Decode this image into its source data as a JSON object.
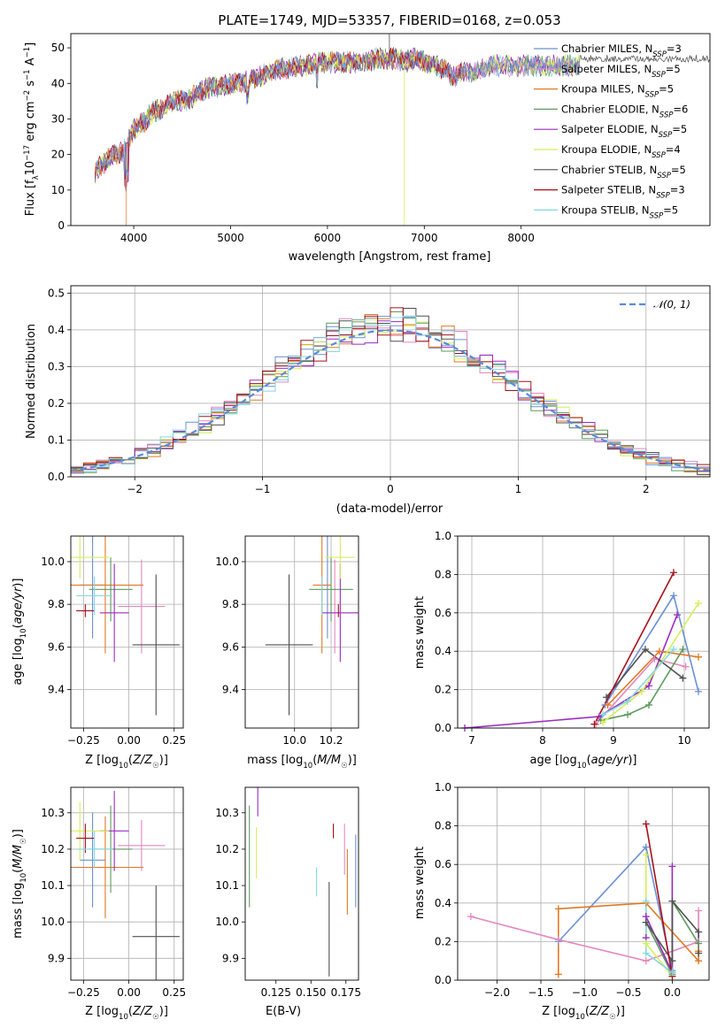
{
  "colors": {
    "chabrier_miles": "#6a8fd8",
    "salpeter_miles": "#e487c0",
    "kroupa_miles": "#e07a22",
    "chabrier_elodie": "#5e9a5e",
    "salpeter_elodie": "#9b2bbf",
    "kroupa_elodie": "#d6ee5a",
    "chabrier_stelib": "#505050",
    "salpeter_stelib": "#a8101a",
    "kroupa_stelib": "#84d8e0",
    "normal_curve": "#5b8ad8",
    "grid": "#b0b0b0"
  },
  "chart_data": [
    {
      "type": "line",
      "title": "PLATE=1749, MJD=53357, FIBERID=0168, z=0.053",
      "xlabel": "wavelength [Angstrom, rest frame]",
      "ylabel": "Flux [fλ10⁻¹⁷ erg cm⁻² s⁻¹ A⁻¹]",
      "xlim": [
        3350,
        9950
      ],
      "ylim": [
        0,
        54
      ],
      "xticks": [
        "4000",
        "5000",
        "6000",
        "7000",
        "8000"
      ],
      "yticks": [
        "0",
        "10",
        "20",
        "30",
        "40",
        "50"
      ],
      "grid": false,
      "legend_position": "right",
      "series": [
        {
          "name": "Chabrier MILES, N_SSP=3"
        },
        {
          "name": "Salpeter MILES, N_SSP=5"
        },
        {
          "name": "Kroupa MILES, N_SSP=5"
        },
        {
          "name": "Chabrier ELODIE, N_SSP=6"
        },
        {
          "name": "Salpeter ELODIE, N_SSP=5"
        },
        {
          "name": "Kroupa ELODIE, N_SSP=4"
        },
        {
          "name": "Chabrier STELIB, N_SSP=5"
        },
        {
          "name": "Salpeter STELIB, N_SSP=3"
        },
        {
          "name": "Kroupa STELIB, N_SSP=5"
        }
      ],
      "spectrum_continuum": {
        "x": [
          3600,
          3700,
          3800,
          3900,
          4000,
          4100,
          4200,
          4300,
          4400,
          4500,
          4600,
          4700,
          4800,
          4900,
          5000,
          5100,
          5200,
          5300,
          5400,
          5500,
          5600,
          5700,
          5800,
          5900,
          6000,
          6100,
          6200,
          6300,
          6400,
          6500,
          6600,
          6700,
          6800,
          6900,
          7000,
          7100,
          7200,
          7300,
          7400,
          7500,
          7600,
          7700,
          7800,
          7900,
          8000,
          8100,
          8200,
          8300,
          8400,
          8500,
          8600
        ],
        "y": [
          15,
          18,
          20,
          21,
          27,
          29,
          32,
          33,
          35,
          35,
          36,
          38,
          39,
          39,
          40,
          40,
          41,
          42,
          43,
          44,
          44,
          45,
          45,
          46,
          46,
          46,
          46,
          46,
          46,
          47,
          47,
          47,
          46,
          47,
          46,
          45,
          44,
          42,
          43,
          43,
          44,
          45,
          45,
          45,
          45,
          45,
          45,
          45,
          45,
          45,
          45
        ]
      }
    },
    {
      "type": "bar",
      "xlabel": "(data-model)/error",
      "ylabel": "Normed distribution",
      "xlim": [
        -2.5,
        2.5
      ],
      "ylim": [
        0,
        0.52
      ],
      "xticks": [
        "−2",
        "−1",
        "0",
        "1",
        "2"
      ],
      "yticks": [
        "0.0",
        "0.1",
        "0.2",
        "0.3",
        "0.4",
        "0.5"
      ],
      "grid": true,
      "legend_position": "top-right",
      "reference_curve": {
        "name": "𝒩(0, 1)",
        "mu": 0,
        "sigma": 1
      },
      "bin_width": 0.1,
      "histogram_x_start": -2.5
    },
    {
      "type": "scatter",
      "xlabel": "Z [log10(Z/Z☉)]",
      "ylabel": "age [log10(age/yr)]",
      "xlim": [
        -0.32,
        0.3
      ],
      "ylim": [
        9.22,
        10.12
      ],
      "xticks": [
        "−0.25",
        "0.00",
        "0.25"
      ],
      "yticks": [
        "9.4",
        "9.6",
        "9.8",
        "10.0"
      ],
      "grid": true,
      "points": [
        {
          "x": -0.2,
          "xerr": 0.07,
          "y": 9.89,
          "yerr": 0.25
        },
        {
          "x": 0.07,
          "xerr": 0.13,
          "y": 9.79,
          "yerr": 0.22
        },
        {
          "x": -0.13,
          "xerr": 0.21,
          "y": 9.89,
          "yerr": 0.32
        },
        {
          "x": -0.1,
          "xerr": 0.12,
          "y": 9.87,
          "yerr": 0.15
        },
        {
          "x": -0.08,
          "xerr": 0.08,
          "y": 9.76,
          "yerr": 0.23
        },
        {
          "x": -0.27,
          "xerr": 0.16,
          "y": 10.02,
          "yerr": 0.1
        },
        {
          "x": 0.15,
          "xerr": 0.13,
          "y": 9.61,
          "yerr": 0.33
        },
        {
          "x": -0.24,
          "xerr": 0.05,
          "y": 9.77,
          "yerr": 0.03
        },
        {
          "x": -0.19,
          "xerr": 0.1,
          "y": 9.84,
          "yerr": 0.09
        }
      ]
    },
    {
      "type": "scatter",
      "xlabel": "mass [log10(M/M☉)]",
      "xlim": [
        9.73,
        10.35
      ],
      "ylim": [
        9.22,
        10.12
      ],
      "xticks": [
        "10.0",
        "10.2"
      ],
      "yticks": [
        "9.4",
        "9.6",
        "9.8",
        "10.0"
      ],
      "grid": true,
      "points": [
        {
          "x": 10.18,
          "xerr": 0.0,
          "y": 9.89,
          "yerr": 0.25
        },
        {
          "x": 10.22,
          "xerr": 0.0,
          "y": 9.79,
          "yerr": 0.22
        },
        {
          "x": 10.15,
          "xerr": 0.05,
          "y": 9.89,
          "yerr": 0.32
        },
        {
          "x": 10.2,
          "xerr": 0.12,
          "y": 9.87,
          "yerr": 0.15
        },
        {
          "x": 10.25,
          "xerr": 0.1,
          "y": 9.76,
          "yerr": 0.23
        },
        {
          "x": 10.25,
          "xerr": 0.08,
          "y": 10.02,
          "yerr": 0.1
        },
        {
          "x": 9.97,
          "xerr": 0.13,
          "y": 9.61,
          "yerr": 0.33
        },
        {
          "x": 10.24,
          "xerr": 0.0,
          "y": 9.77,
          "yerr": 0.03
        },
        {
          "x": 10.15,
          "xerr": 0.0,
          "y": 9.84,
          "yerr": 0.09
        }
      ]
    },
    {
      "type": "line",
      "xlabel": "age [log10(age/yr)]",
      "ylabel": "mass weight",
      "xlim": [
        6.8,
        10.35
      ],
      "ylim": [
        0,
        1
      ],
      "xticks": [
        "7",
        "8",
        "9",
        "10"
      ],
      "yticks": [
        "0.0",
        "0.2",
        "0.4",
        "0.6",
        "0.8",
        "1.0"
      ],
      "grid": true,
      "series_points": [
        {
          "x": [
            8.88,
            9.85,
            10.2
          ],
          "y": [
            0.12,
            0.69,
            0.19
          ]
        },
        {
          "x": [
            8.75,
            9.58,
            10.02
          ],
          "y": [
            0.02,
            0.36,
            0.32
          ]
        },
        {
          "x": [
            8.92,
            9.65,
            10.2
          ],
          "y": [
            0.12,
            0.4,
            0.37
          ]
        },
        {
          "x": [
            8.82,
            9.2,
            9.5,
            9.98
          ],
          "y": [
            0.04,
            0.07,
            0.12,
            0.41
          ]
        },
        {
          "x": [
            6.9,
            8.8,
            9.5,
            9.9
          ],
          "y": [
            0.0,
            0.06,
            0.22,
            0.59
          ]
        },
        {
          "x": [
            8.85,
            9.4,
            10.2
          ],
          "y": [
            0.03,
            0.19,
            0.65
          ]
        },
        {
          "x": [
            8.9,
            9.45,
            9.98
          ],
          "y": [
            0.16,
            0.41,
            0.26
          ]
        },
        {
          "x": [
            8.73,
            9.85
          ],
          "y": [
            0.02,
            0.81
          ]
        },
        {
          "x": [
            8.85,
            9.2,
            9.85
          ],
          "y": [
            0.07,
            0.14,
            0.41
          ]
        }
      ]
    },
    {
      "type": "scatter",
      "xlabel": "Z [log10(Z/Z☉)]",
      "ylabel": "mass [log10(M/M☉)]",
      "xlim": [
        -0.32,
        0.3
      ],
      "ylim": [
        9.84,
        10.37
      ],
      "xticks": [
        "−0.25",
        "0.00",
        "0.25"
      ],
      "yticks": [
        "9.9",
        "10.0",
        "10.1",
        "10.2",
        "10.3"
      ],
      "grid": true,
      "points": [
        {
          "x": -0.2,
          "xerr": 0.07,
          "y": 10.17,
          "yerr": 0.13
        },
        {
          "x": 0.07,
          "xerr": 0.13,
          "y": 10.21,
          "yerr": 0.07
        },
        {
          "x": -0.13,
          "xerr": 0.21,
          "y": 10.15,
          "yerr": 0.14
        },
        {
          "x": -0.1,
          "xerr": 0.12,
          "y": 10.2,
          "yerr": 0.12
        },
        {
          "x": -0.08,
          "xerr": 0.08,
          "y": 10.25,
          "yerr": 0.11
        },
        {
          "x": -0.27,
          "xerr": 0.16,
          "y": 10.25,
          "yerr": 0.08
        },
        {
          "x": 0.15,
          "xerr": 0.13,
          "y": 9.96,
          "yerr": 0.14
        },
        {
          "x": -0.24,
          "xerr": 0.05,
          "y": 10.23,
          "yerr": 0.04
        },
        {
          "x": -0.19,
          "xerr": 0.1,
          "y": 10.2,
          "yerr": 0.05
        }
      ]
    },
    {
      "type": "scatter",
      "xlabel": "E(B-V)",
      "xlim": [
        0.103,
        0.184
      ],
      "ylim": [
        9.84,
        10.37
      ],
      "xticks": [
        "0.125",
        "0.150",
        "0.175"
      ],
      "yticks": [
        "9.9",
        "10.0",
        "10.1",
        "10.2",
        "10.3"
      ],
      "grid": false,
      "points": [
        {
          "x": 0.182,
          "xerr": 0.0,
          "y": 10.14,
          "yerr": 0.1
        },
        {
          "x": 0.174,
          "xerr": 0.0,
          "y": 10.2,
          "yerr": 0.07
        },
        {
          "x": 0.176,
          "xerr": 0.0,
          "y": 10.11,
          "yerr": 0.09
        },
        {
          "x": 0.106,
          "xerr": 0.0,
          "y": 10.18,
          "yerr": 0.14
        },
        {
          "x": 0.112,
          "xerr": 0.0,
          "y": 10.33,
          "yerr": 0.04
        },
        {
          "x": 0.111,
          "xerr": 0.0,
          "y": 10.19,
          "yerr": 0.07
        },
        {
          "x": 0.163,
          "xerr": 0.0,
          "y": 9.98,
          "yerr": 0.13
        },
        {
          "x": 0.166,
          "xerr": 0.0,
          "y": 10.25,
          "yerr": 0.02
        },
        {
          "x": 0.154,
          "xerr": 0.0,
          "y": 10.11,
          "yerr": 0.04
        }
      ]
    },
    {
      "type": "line",
      "xlabel": "Z [log10(Z/Z☉)]",
      "ylabel": "mass weight",
      "xlim": [
        -2.45,
        0.42
      ],
      "ylim": [
        0,
        1
      ],
      "xticks": [
        "−2.0",
        "−1.5",
        "−1.0",
        "−0.5",
        "0.0"
      ],
      "yticks": [
        "0.0",
        "0.2",
        "0.4",
        "0.6",
        "0.8",
        "1.0"
      ],
      "grid": true,
      "series_points": [
        {
          "x": [
            -1.3,
            -0.3,
            0.0
          ],
          "y": [
            0.2,
            0.69,
            0.05
          ]
        },
        {
          "x": [
            -2.3,
            -1.3,
            -0.3,
            0.3,
            0.3
          ],
          "y": [
            0.33,
            0.21,
            0.1,
            0.2,
            0.36
          ]
        },
        {
          "x": [
            -1.3,
            -1.3,
            -0.3,
            0.3,
            0.3
          ],
          "y": [
            0.03,
            0.37,
            0.4,
            0.1,
            0.15
          ]
        },
        {
          "x": [
            -0.3,
            0.0,
            0.0,
            0.3
          ],
          "y": [
            0.3,
            0.03,
            0.41,
            0.19
          ]
        },
        {
          "x": [
            -0.3,
            -0.3,
            0.0,
            0.0
          ],
          "y": [
            0.22,
            0.33,
            0.04,
            0.59
          ]
        },
        {
          "x": [
            -0.3,
            -0.3,
            0.0
          ],
          "y": [
            0.65,
            0.19,
            0.02
          ]
        },
        {
          "x": [
            -0.3,
            0.0,
            0.0,
            0.3,
            0.3
          ],
          "y": [
            0.3,
            0.1,
            0.41,
            0.25,
            0.14
          ]
        },
        {
          "x": [
            -0.3,
            0.0
          ],
          "y": [
            0.81,
            0.02
          ]
        },
        {
          "x": [
            -0.3,
            -0.3,
            0.0
          ],
          "y": [
            0.41,
            0.14,
            0.04
          ]
        }
      ]
    }
  ]
}
